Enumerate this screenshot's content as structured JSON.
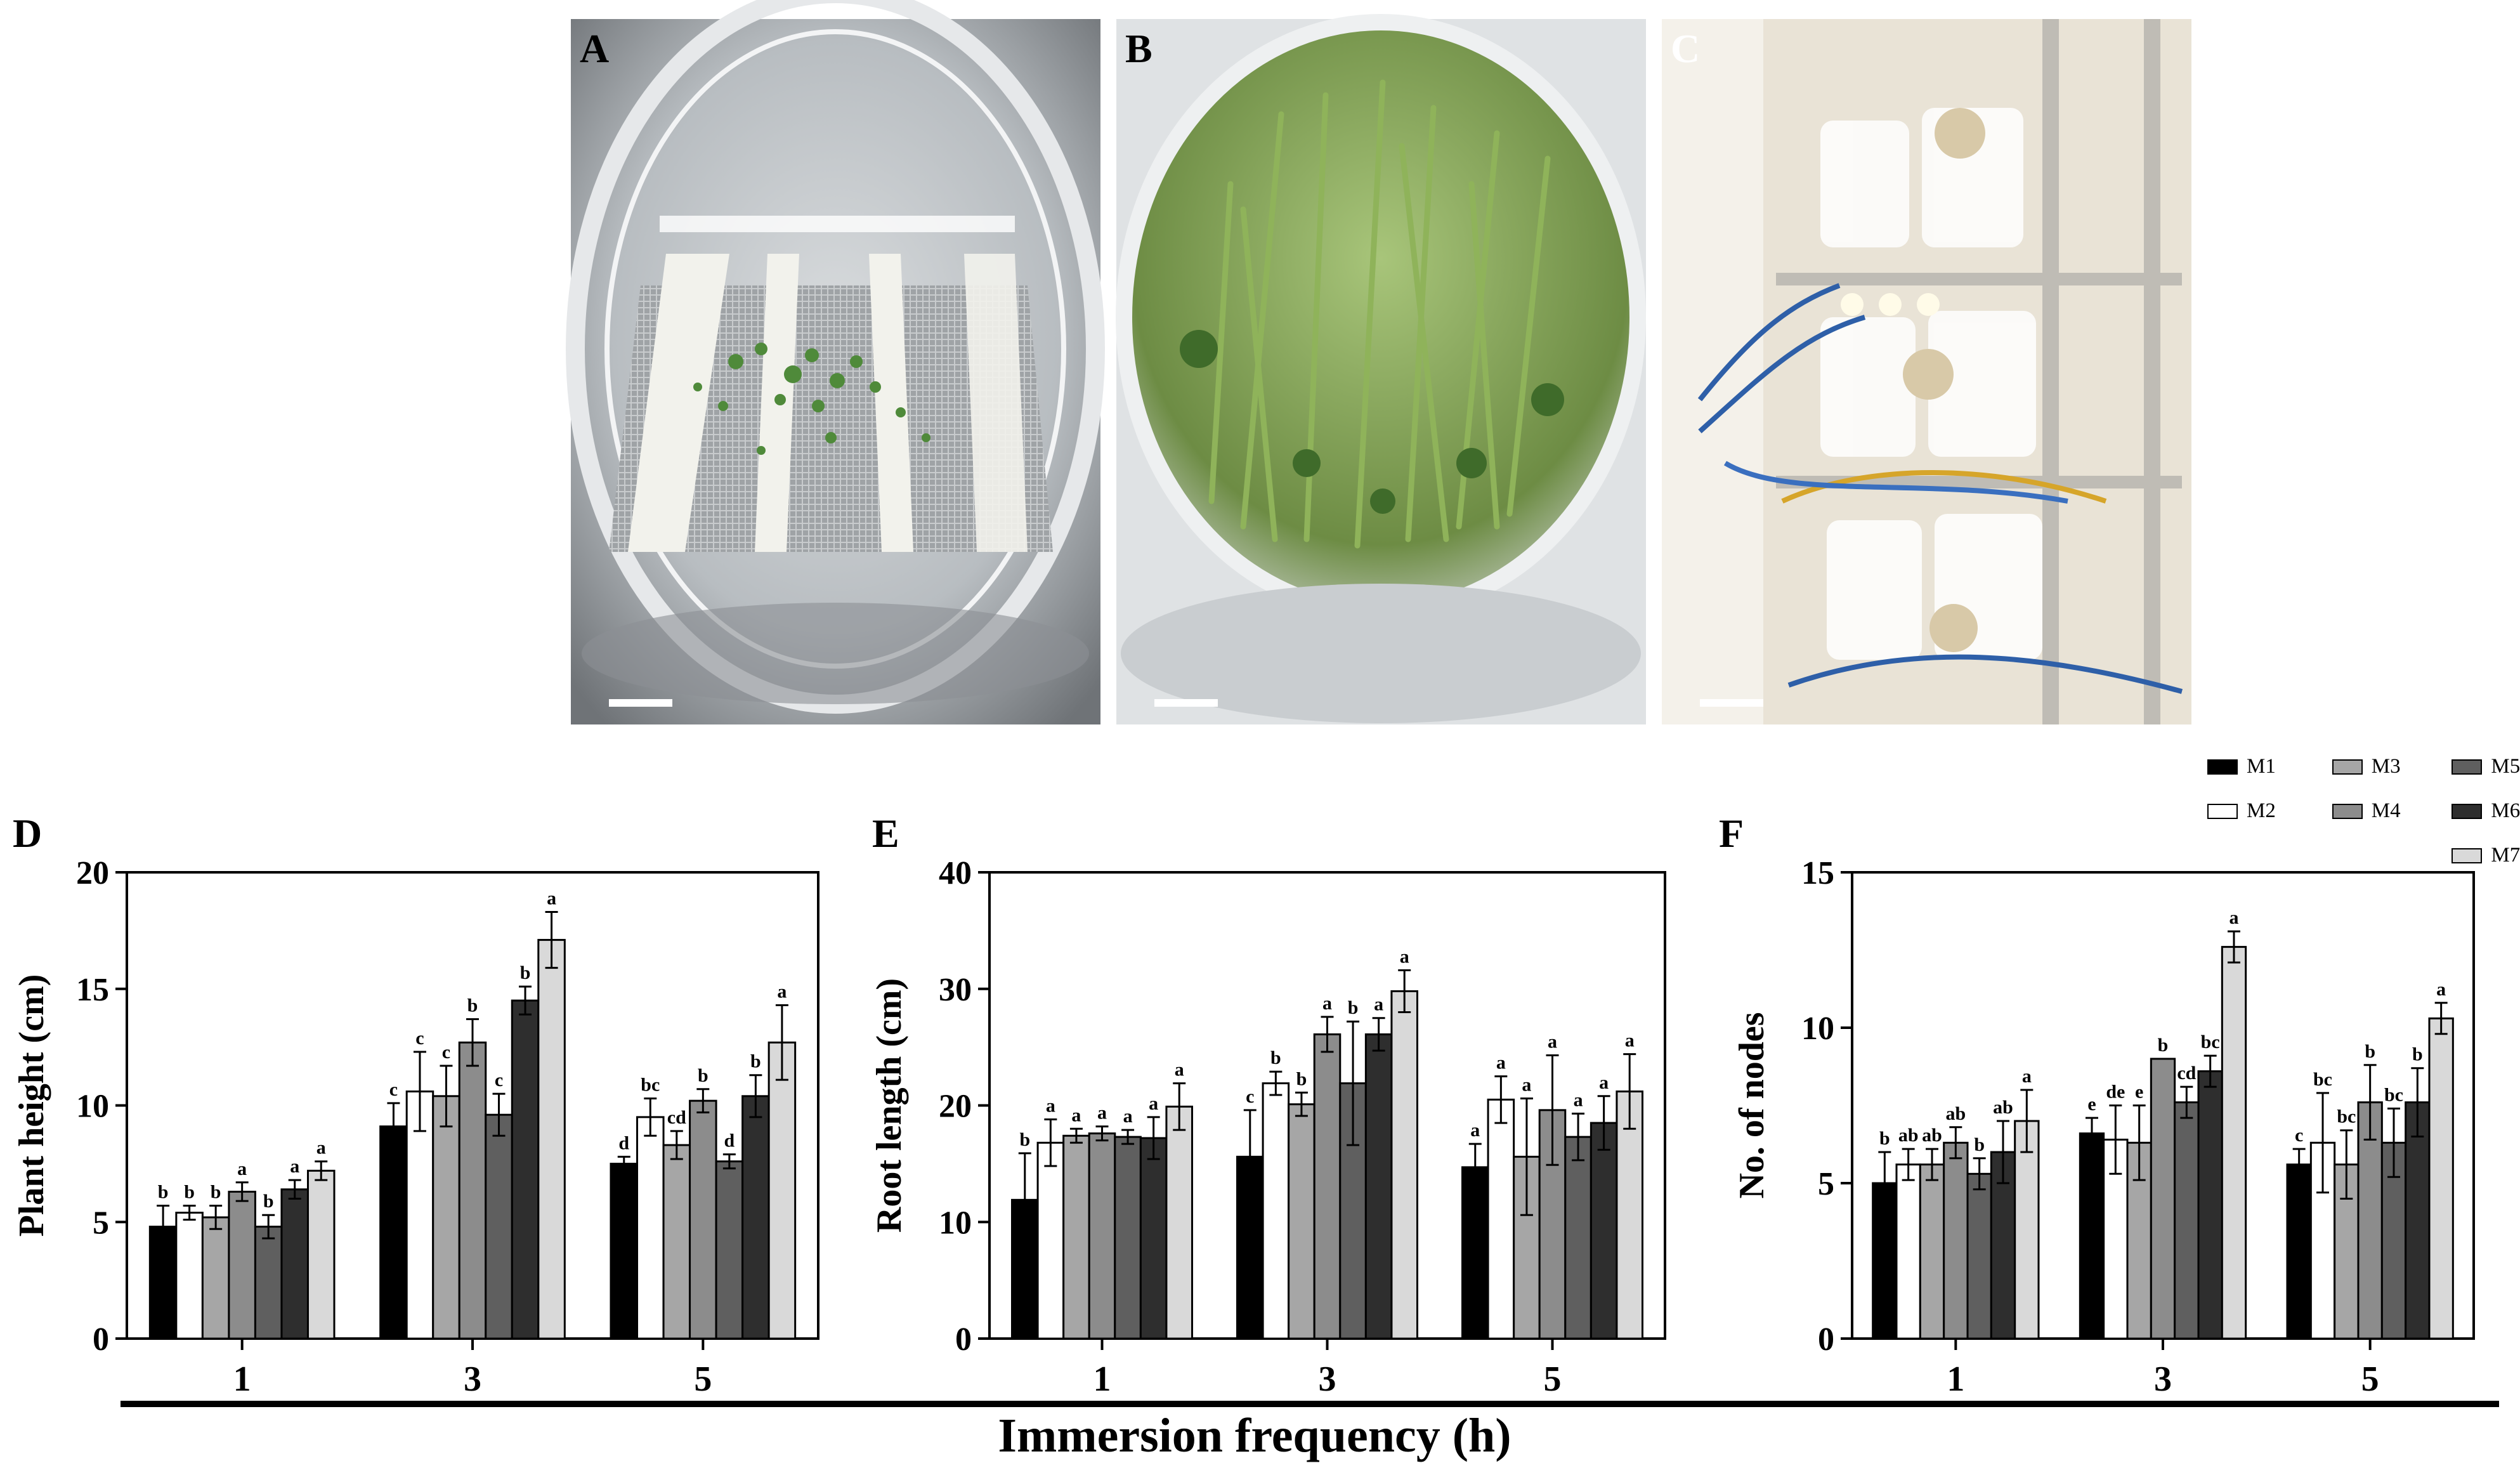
{
  "panels": {
    "a": "A",
    "b": "B",
    "c": "C",
    "d": "D",
    "e": "E",
    "f": "F"
  },
  "colors": {
    "M1": "#000000",
    "M2": "#ffffff",
    "M3": "#a6a6a6",
    "M4": "#8c8c8c",
    "M5": "#5f5f5f",
    "M6": "#2e2e2e",
    "M7": "#d9d9d9"
  },
  "legend": [
    "M1",
    "M2",
    "M3",
    "M4",
    "M5",
    "M6",
    "M7"
  ],
  "x_title": "Immersion frequency (h)",
  "chart_data": [
    {
      "type": "bar",
      "panel": "D",
      "categories": [
        "1",
        "3",
        "5"
      ],
      "ylabel": "Plant height (cm)",
      "ylim": [
        0,
        20
      ],
      "yticks": [
        0,
        5,
        10,
        15,
        20
      ],
      "series": [
        {
          "name": "M1",
          "values": [
            4.8,
            9.1,
            7.5
          ],
          "err": [
            0.9,
            1.0,
            0.3
          ],
          "letters": [
            "b",
            "c",
            "d"
          ]
        },
        {
          "name": "M2",
          "values": [
            5.4,
            10.6,
            9.5
          ],
          "err": [
            0.3,
            1.7,
            0.8
          ],
          "letters": [
            "b",
            "c",
            "bc"
          ]
        },
        {
          "name": "M3",
          "values": [
            5.2,
            10.4,
            8.3
          ],
          "err": [
            0.5,
            1.3,
            0.6
          ],
          "letters": [
            "b",
            "c",
            "cd"
          ]
        },
        {
          "name": "M4",
          "values": [
            6.3,
            12.7,
            10.2
          ],
          "err": [
            0.4,
            1.0,
            0.5
          ],
          "letters": [
            "a",
            "b",
            "b"
          ]
        },
        {
          "name": "M5",
          "values": [
            4.8,
            9.6,
            7.6
          ],
          "err": [
            0.5,
            0.9,
            0.3
          ],
          "letters": [
            "b",
            "c",
            "d"
          ]
        },
        {
          "name": "M6",
          "values": [
            6.4,
            14.5,
            10.4
          ],
          "err": [
            0.4,
            0.6,
            0.9
          ],
          "letters": [
            "a",
            "b",
            "b"
          ]
        },
        {
          "name": "M7",
          "values": [
            7.2,
            17.1,
            12.7
          ],
          "err": [
            0.4,
            1.2,
            1.6
          ],
          "letters": [
            "a",
            "a",
            "a"
          ]
        }
      ]
    },
    {
      "type": "bar",
      "panel": "E",
      "categories": [
        "1",
        "3",
        "5"
      ],
      "ylabel": "Root length (cm)",
      "ylim": [
        0,
        40
      ],
      "yticks": [
        0,
        10,
        20,
        30,
        40
      ],
      "series": [
        {
          "name": "M1",
          "values": [
            11.9,
            15.6,
            14.7
          ],
          "err": [
            4.0,
            4.0,
            2.0
          ],
          "letters": [
            "b",
            "c",
            "a"
          ]
        },
        {
          "name": "M2",
          "values": [
            16.8,
            21.9,
            20.5
          ],
          "err": [
            2.0,
            1.0,
            2.0
          ],
          "letters": [
            "a",
            "b",
            "a"
          ]
        },
        {
          "name": "M3",
          "values": [
            17.4,
            20.1,
            15.6
          ],
          "err": [
            0.6,
            1.0,
            5.0
          ],
          "letters": [
            "a",
            "b",
            "a"
          ]
        },
        {
          "name": "M4",
          "values": [
            17.6,
            26.1,
            19.6
          ],
          "err": [
            0.6,
            1.5,
            4.7
          ],
          "letters": [
            "a",
            "a",
            "a"
          ]
        },
        {
          "name": "M5",
          "values": [
            17.3,
            21.9,
            17.3
          ],
          "err": [
            0.6,
            5.3,
            2.0
          ],
          "letters": [
            "a",
            "b",
            "a"
          ]
        },
        {
          "name": "M6",
          "values": [
            17.2,
            26.1,
            18.5
          ],
          "err": [
            1.8,
            1.4,
            2.3
          ],
          "letters": [
            "a",
            "a",
            "a"
          ]
        },
        {
          "name": "M7",
          "values": [
            19.9,
            29.8,
            21.2
          ],
          "err": [
            2.0,
            1.8,
            3.2
          ],
          "letters": [
            "a",
            "a",
            "a"
          ]
        }
      ]
    },
    {
      "type": "bar",
      "panel": "F",
      "categories": [
        "1",
        "3",
        "5"
      ],
      "ylabel": "No. of nodes",
      "ylim": [
        0,
        15
      ],
      "yticks": [
        0,
        5,
        10,
        15
      ],
      "series": [
        {
          "name": "M1",
          "values": [
            5.0,
            6.6,
            5.6
          ],
          "err": [
            1.0,
            0.5,
            0.5
          ],
          "letters": [
            "b",
            "e",
            "c"
          ]
        },
        {
          "name": "M2",
          "values": [
            5.6,
            6.4,
            6.3
          ],
          "err": [
            0.5,
            1.1,
            1.6
          ],
          "letters": [
            "ab",
            "de",
            "bc"
          ]
        },
        {
          "name": "M3",
          "values": [
            5.6,
            6.3,
            5.6
          ],
          "err": [
            0.5,
            1.2,
            1.1
          ],
          "letters": [
            "ab",
            "e",
            "bc"
          ]
        },
        {
          "name": "M4",
          "values": [
            6.3,
            9.0,
            7.6
          ],
          "err": [
            0.5,
            0.0,
            1.2
          ],
          "letters": [
            "ab",
            "b",
            "b"
          ]
        },
        {
          "name": "M5",
          "values": [
            5.3,
            7.6,
            6.3
          ],
          "err": [
            0.5,
            0.5,
            1.1
          ],
          "letters": [
            "b",
            "cd",
            "bc"
          ]
        },
        {
          "name": "M6",
          "values": [
            6.0,
            8.6,
            7.6
          ],
          "err": [
            1.0,
            0.5,
            1.1
          ],
          "letters": [
            "ab",
            "bc",
            "b"
          ]
        },
        {
          "name": "M7",
          "values": [
            7.0,
            12.6,
            10.3
          ],
          "err": [
            1.0,
            0.5,
            0.5
          ],
          "letters": [
            "a",
            "a",
            "a"
          ]
        }
      ]
    }
  ]
}
